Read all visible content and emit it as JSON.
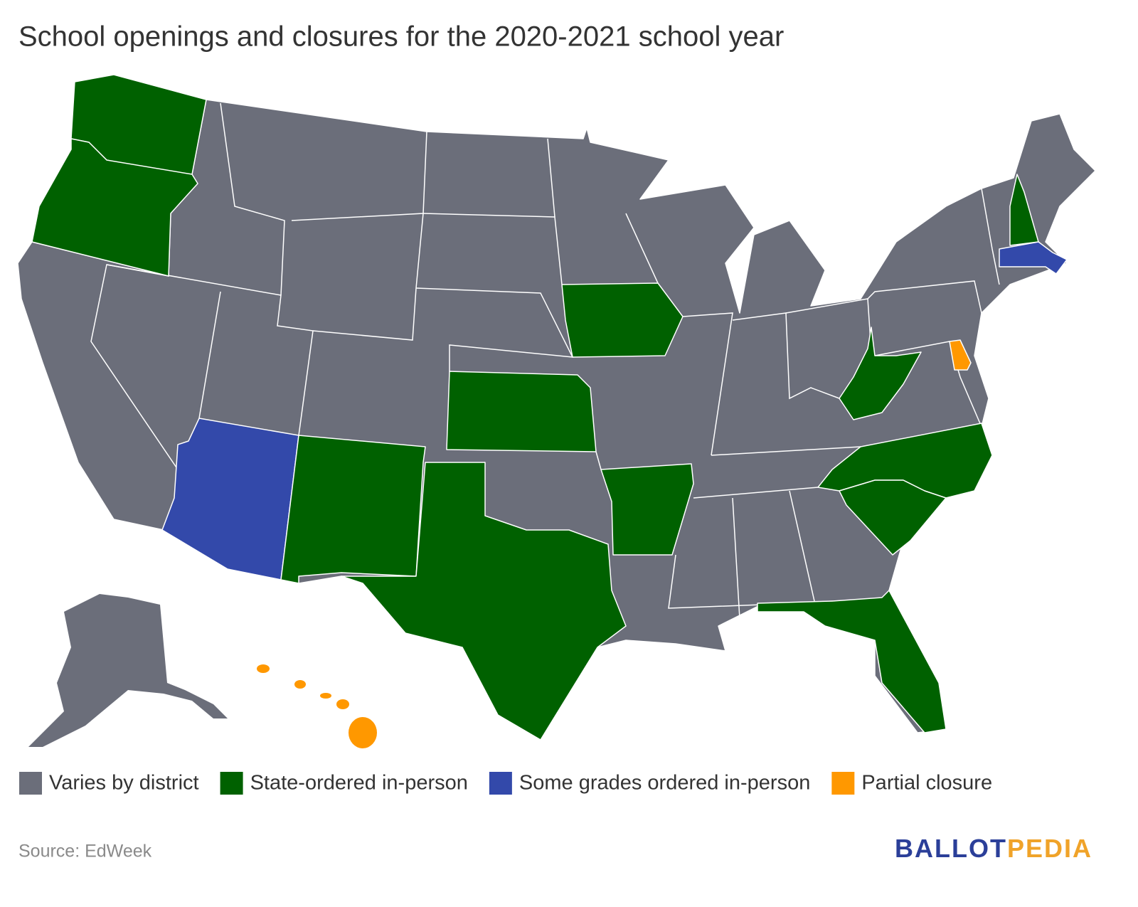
{
  "title": "School openings and closures for the 2020-2021 school year",
  "legend": [
    {
      "label": "Varies by district",
      "color": "#6b6e7a"
    },
    {
      "label": "State-ordered in-person",
      "color": "#006100"
    },
    {
      "label": "Some grades ordered in-person",
      "color": "#3349aa"
    },
    {
      "label": "Partial closure",
      "color": "#ff9800"
    }
  ],
  "source": "Source: EdWeek",
  "logo": {
    "first": "BALLOT",
    "second": "PEDIA"
  }
}
